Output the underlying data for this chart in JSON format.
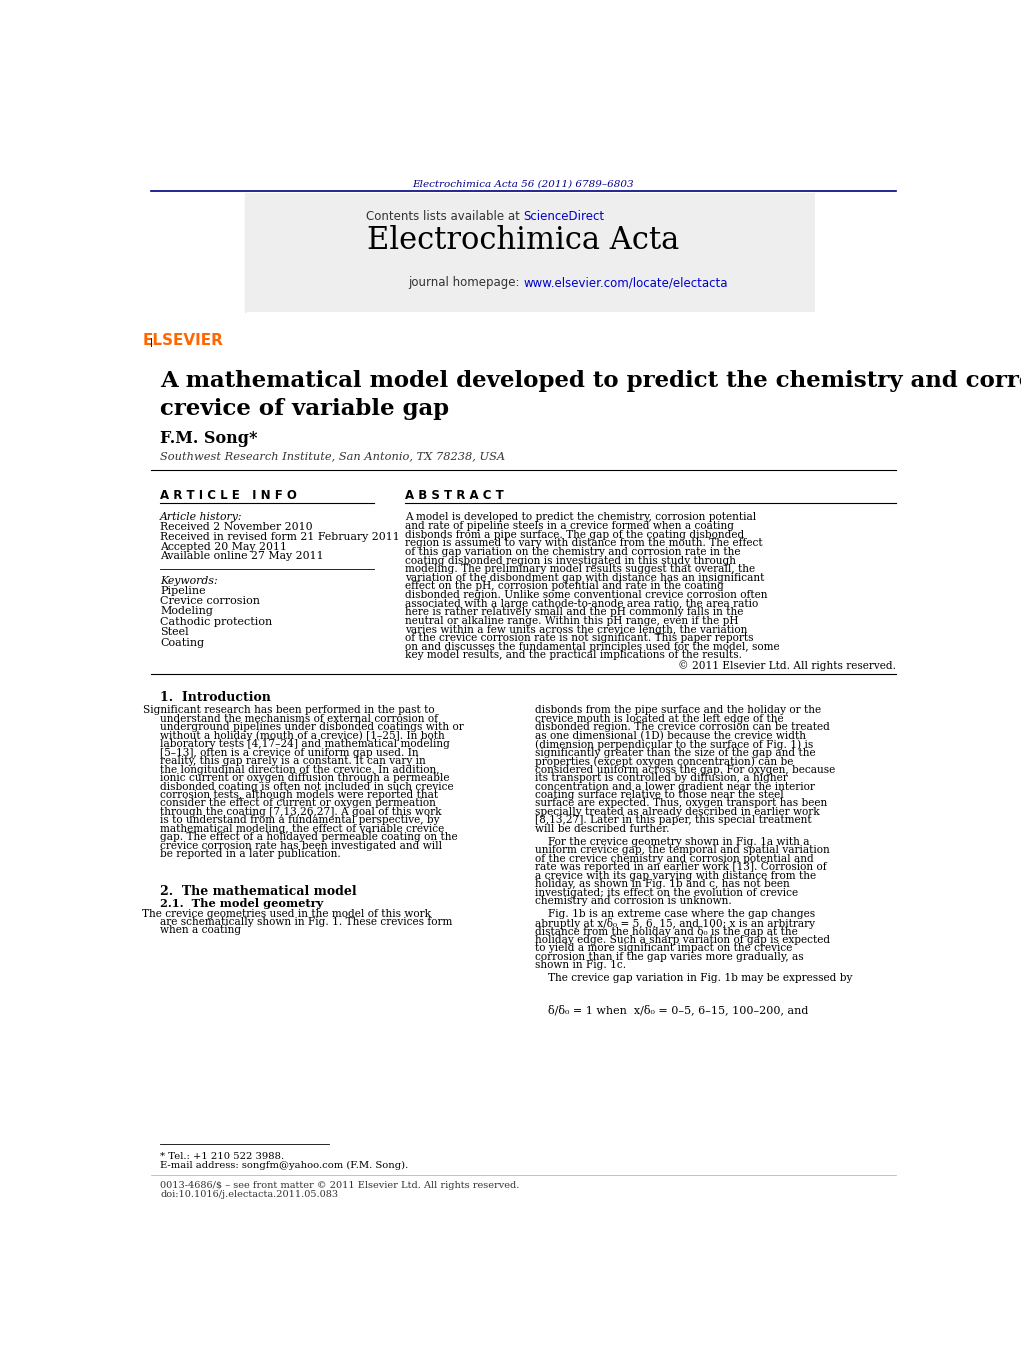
{
  "page_width": 10.21,
  "page_height": 13.51,
  "background_color": "#ffffff",
  "top_journal_ref": "Electrochimica Acta 56 (2011) 6789–6803",
  "top_journal_ref_color": "#00008B",
  "journal_name": "Electrochimica Acta",
  "contents_text": "Contents lists available at ",
  "science_direct": "ScienceDirect",
  "journal_homepage_text": "journal homepage: ",
  "journal_url": "www.elsevier.com/locate/electacta",
  "paper_title": "A mathematical model developed to predict the chemistry and corrosion rate in a\ncrevice of variable gap",
  "author": "F.M. Song*",
  "author_affil": "Southwest Research Institute, San Antonio, TX 78238, USA",
  "article_info_header": "A R T I C L E   I N F O",
  "abstract_header": "A B S T R A C T",
  "article_history_label": "Article history:",
  "history_lines": [
    "Received 2 November 2010",
    "Received in revised form 21 February 2011",
    "Accepted 20 May 2011",
    "Available online 27 May 2011"
  ],
  "keywords_label": "Keywords:",
  "keywords": [
    "Pipeline",
    "Crevice corrosion",
    "Modeling",
    "Cathodic protection",
    "Steel",
    "Coating"
  ],
  "abstract_text": "A model is developed to predict the chemistry, corrosion potential and rate of pipeline steels in a crevice formed when a coating disbonds from a pipe surface. The gap of the coating disbonded region is assumed to vary with distance from the mouth. The effect of this gap variation on the chemistry and corrosion rate in the coating disbonded region is investigated in this study through modeling. The preliminary model results suggest that overall, the variation of the disbondment gap with distance has an insignificant effect on the pH, corrosion potential and rate in the coating disbonded region. Unlike some conventional crevice corrosion often associated with a large cathode-to-anode area ratio, the area ratio here is rather relatively small and the pH commonly falls in the neutral or alkaline range. Within this pH range, even if the pH varies within a few units across the crevice length, the variation of the crevice corrosion rate is not significant. This paper reports on and discusses the fundamental principles used for the model, some key model results, and the practical implications of the results.",
  "copyright": "© 2011 Elsevier Ltd. All rights reserved.",
  "intro_header": "1.  Introduction",
  "intro_text": "Significant research has been performed in the past to understand the mechanisms of external corrosion of underground pipelines under disbonded coatings with or without a holiday (mouth of a crevice) [1–25]. In both laboratory tests [4,17–24] and mathematical modeling [5–13], often is a crevice of uniform gap used. In reality, this gap rarely is a constant. It can vary in the longitudinal direction of the crevice. In addition, ionic current or oxygen diffusion through a permeable disbonded coating is often not included in such crevice corrosion tests, although models were reported that consider the effect of current or oxygen permeation through the coating [7,13,26,27]. A goal of this work is to understand from a fundamental perspective, by mathematical modeling, the effect of variable crevice gap. The effect of a holidayed permeable coating on the crevice corrosion rate has been investigated and will be reported in a later publication.",
  "model_header": "2.  The mathematical model",
  "model_subheader": "2.1.  The model geometry",
  "model_geo_text": "The crevice geometries used in the model of this work are schematically shown in Fig. 1. These crevices form when a coating",
  "right_col_intro": "disbonds from the pipe surface and the holiday or the crevice mouth is located at the left edge of the disbonded region. The crevice corrosion can be treated as one dimensional (1D) because the crevice width (dimension perpendicular to the surface of Fig. 1) is significantly greater than the size of the gap and the properties (except oxygen concentration) can be considered uniform across the gap. For oxygen, because its transport is controlled by diffusion, a higher concentration and a lower gradient near the interior coating surface relative to those near the steel surface are expected. Thus, oxygen transport has been specially treated as already described in earlier work [8,13,27]. Later in this paper, this special treatment will be described further.",
  "right_col_para2": "For the crevice geometry shown in Fig. 1a with a uniform crevice gap, the temporal and spatial variation of the crevice chemistry and corrosion potential and rate was reported in an earlier work [13]. Corrosion of a crevice with its gap varying with distance from the holiday, as shown in Fig. 1b and c, has not been investigated; its effect on the evolution of crevice chemistry and corrosion is unknown.",
  "right_col_para3": "Fig. 1b is an extreme case where the gap changes abruptly at x/δ₀ = 5, 6, 15, and 100; x is an arbitrary distance from the holiday and δ₀ is the gap at the holiday edge. Such a sharp variation of gap is expected to yield a more significant impact on the crevice corrosion than if the gap varies more gradually, as shown in Fig. 1c.",
  "right_col_para4": "The crevice gap variation in Fig. 1b may be expressed by",
  "footnote_tel": "* Tel.: +1 210 522 3988.",
  "footnote_email": "E-mail address: songfm@yahoo.com (F.M. Song).",
  "footer_issn": "0013-4686/$ – see front matter © 2011 Elsevier Ltd. All rights reserved.",
  "footer_doi": "doi:10.1016/j.electacta.2011.05.083",
  "equation_line1": "δ/δ₀ = 1 when  x/δ₀ = 0–5, 6–15, 100–200, and",
  "header_bar_color": "#1a1a2e",
  "elsevier_color": "#FF6600",
  "link_color": "#0000CC",
  "url_color": "#0000CC"
}
